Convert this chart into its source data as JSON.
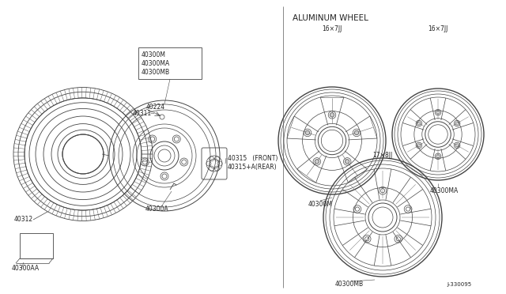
{
  "bg_color": "#ffffff",
  "line_color": "#444444",
  "thin_line": 0.5,
  "med_line": 0.8,
  "font_size": 5.5,
  "title": "ALUMINUM WHEEL",
  "diagram_id": "J-330095",
  "parts": {
    "tire_label": "40312",
    "wheel_label1": "40300M",
    "wheel_label2": "40300MA",
    "wheel_label3": "40300MB",
    "valve_label": "40311",
    "cap_label": "40224",
    "nut_label1": "40315   (FRONT)",
    "nut_label2": "40315+A(REAR)",
    "hub_label": "40300A",
    "sticker_label": "40300AA",
    "w1_label": "40300M",
    "w1_size": "16×7JJ",
    "w2_label": "40300MA",
    "w2_size": "16×7JJ",
    "w3_label": "40300MB",
    "w3_size": "17×8JJ"
  }
}
